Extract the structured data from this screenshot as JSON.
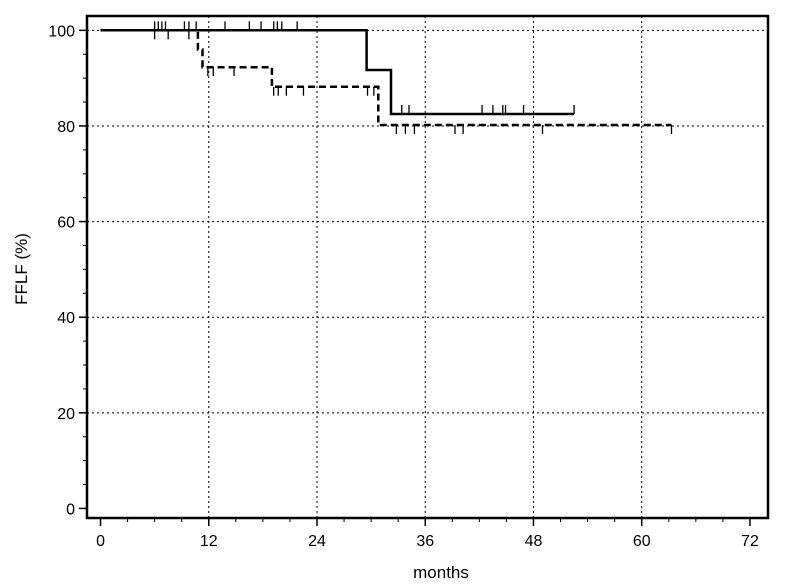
{
  "chart_data": {
    "type": "line",
    "title": "",
    "xlabel": "months",
    "ylabel": "FFLF (%)",
    "xlim": [
      -1.5,
      74
    ],
    "ylim": [
      -2,
      103
    ],
    "xticks": [
      0,
      12,
      24,
      36,
      48,
      60,
      72
    ],
    "yticks": [
      0,
      20,
      40,
      60,
      80,
      100
    ],
    "xtick_labels": [
      "0",
      "12",
      "24",
      "36",
      "48",
      "60",
      "72"
    ],
    "ytick_labels": [
      "0",
      "20",
      "40",
      "60",
      "80",
      "100"
    ],
    "grid": true,
    "legend": "none",
    "series": [
      {
        "style": "solid",
        "steps": [
          [
            0,
            100
          ],
          [
            29.5,
            100
          ],
          [
            29.5,
            91.7
          ],
          [
            32.2,
            91.7
          ],
          [
            32.2,
            82.5
          ],
          [
            52.5,
            82.5
          ]
        ],
        "censor_above": [
          6,
          6.4,
          6.8,
          7.2,
          9.3,
          9.8,
          10.6,
          13.8,
          16.5,
          17.8,
          19.2,
          19.6,
          20.1,
          21.8,
          33.4,
          34.2,
          42.3,
          43.5,
          44.6,
          44.9,
          46.9,
          52.5
        ],
        "censor_below": []
      },
      {
        "style": "dashed",
        "steps": [
          [
            0,
            100
          ],
          [
            10.8,
            100
          ],
          [
            10.8,
            96
          ],
          [
            11.3,
            96
          ],
          [
            11.3,
            92.3
          ],
          [
            19,
            92.3
          ],
          [
            19,
            88.2
          ],
          [
            30.8,
            88.2
          ],
          [
            30.8,
            80.2
          ],
          [
            63.3,
            80.2
          ]
        ],
        "censor_above": [],
        "censor_below": [
          6,
          7.5,
          9.8,
          11.9,
          12.5,
          14.8,
          19.2,
          19.7,
          20.6,
          22.5,
          29.6,
          30.3,
          32.8,
          33.8,
          34.8,
          39.3,
          40.2,
          49,
          63.3
        ]
      }
    ]
  }
}
